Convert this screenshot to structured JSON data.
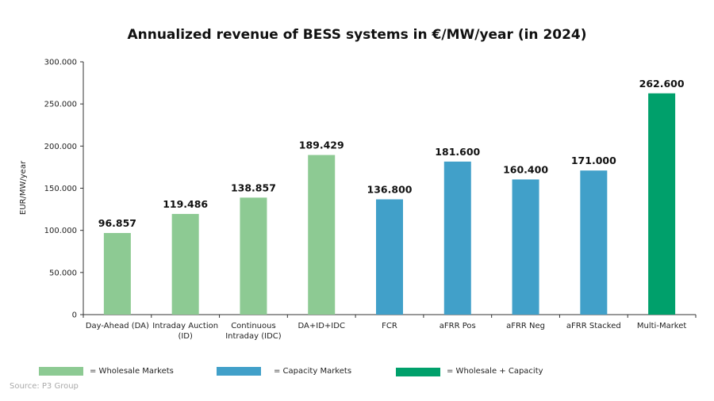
{
  "chart_data": {
    "type": "bar",
    "title": "Annualized revenue of BESS systems in €/MW/year (in 2024)",
    "xlabel": "",
    "ylabel": "EUR/MW/year",
    "ylim": [
      0,
      300000
    ],
    "yticks": [
      "0",
      "50.000",
      "100.000",
      "150.000",
      "200.000",
      "250.000",
      "300.000"
    ],
    "categories": [
      "Day-Ahead (DA)",
      "Intraday Auction (ID)",
      "Continuous Intraday (IDC)",
      "DA+ID+IDC",
      "FCR",
      "aFRR Pos",
      "aFRR Neg",
      "aFRR Stacked",
      "Multi-Market"
    ],
    "category_lines": [
      [
        "Day-Ahead (DA)"
      ],
      [
        "Intraday Auction",
        "(ID)"
      ],
      [
        "Continuous",
        "Intraday (IDC)"
      ],
      [
        "DA+ID+IDC"
      ],
      [
        "FCR"
      ],
      [
        "aFRR Pos"
      ],
      [
        "aFRR Neg"
      ],
      [
        "aFRR Stacked"
      ],
      [
        "Multi-Market"
      ]
    ],
    "values": [
      96857,
      119486,
      138857,
      189429,
      136800,
      181600,
      160400,
      171000,
      262600
    ],
    "data_labels": [
      "96.857",
      "119.486",
      "138.857",
      "189.429",
      "136.800",
      "181.600",
      "160.400",
      "171.000",
      "262.600"
    ],
    "groups": [
      "wholesale",
      "wholesale",
      "wholesale",
      "wholesale",
      "capacity",
      "capacity",
      "capacity",
      "capacity",
      "both"
    ],
    "colors": {
      "wholesale": "#8dca93",
      "capacity": "#41a0c9",
      "both": "#00a06b"
    },
    "legend": [
      {
        "key": "wholesale",
        "label": "= Wholesale Markets"
      },
      {
        "key": "capacity",
        "label": "= Capacity Markets"
      },
      {
        "key": "both",
        "label": "= Wholesale + Capacity"
      }
    ],
    "grid": false,
    "legend_position": "bottom"
  },
  "source": "Source: P3 Group"
}
